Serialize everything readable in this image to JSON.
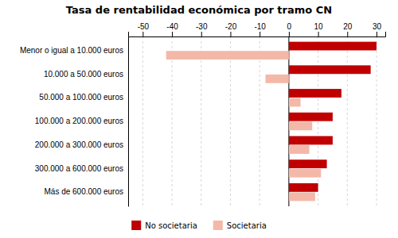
{
  "chart_data": {
    "type": "bar",
    "orientation": "horizontal",
    "title": "Tasa de rentabilidad económica por tramo CN",
    "categories": [
      "Menor o igual a 10.000 euros",
      "10.000 a 50.000 euros",
      "50.000 a 100.000 euros",
      "100.000 a 200.000 euros",
      "200.000 a 300.000 euros",
      "300.000 a 600.000 euros",
      "Más de 600.000 euros"
    ],
    "series": [
      {
        "name": "No societaria",
        "color": "#c00000",
        "values": [
          30,
          28,
          18,
          15,
          15,
          13,
          10
        ]
      },
      {
        "name": "Societaria",
        "color": "#f4b8a8",
        "values": [
          -42,
          -8,
          4,
          8,
          7,
          11,
          9
        ]
      }
    ],
    "xlim": [
      -55,
      33
    ],
    "xticks": [
      -50,
      -40,
      -30,
      -20,
      -10,
      0,
      10,
      20,
      30
    ],
    "grid": true,
    "legend": "bottom"
  }
}
